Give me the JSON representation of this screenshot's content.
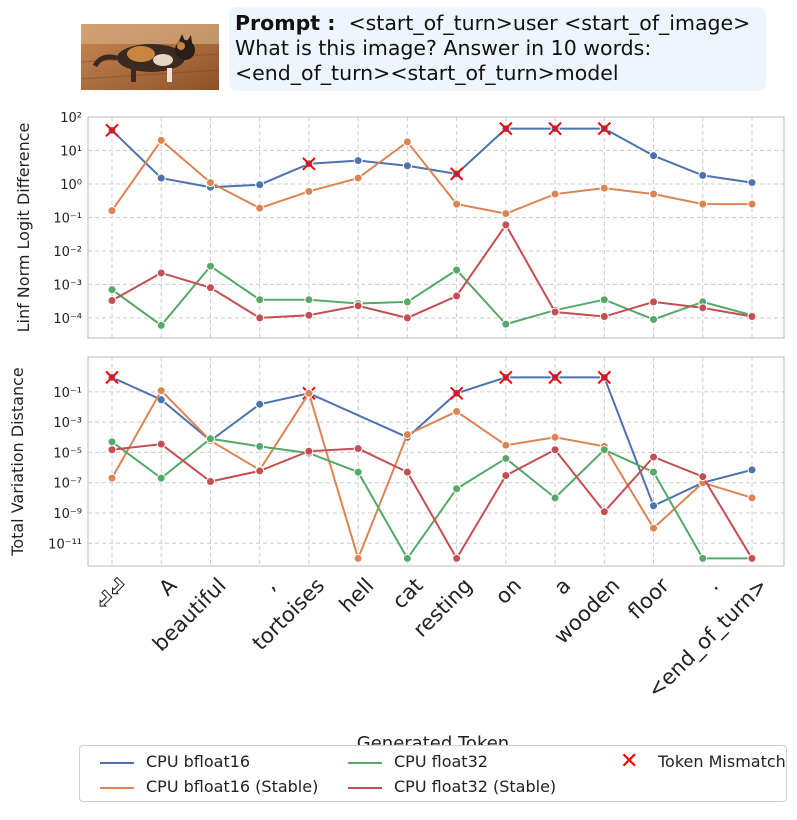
{
  "prompt": {
    "label": "Prompt :",
    "text": "<start_of_turn>user <start_of_image>\nWhat is this image? Answer in 10 words:\n<end_of_turn><start_of_turn>model"
  },
  "chart_data": [
    {
      "type": "line",
      "ylabel": "Linf Norm Logit Difference",
      "yscale": "log",
      "ylim_exp": [
        -4.6,
        2
      ],
      "yticks": [
        {
          "exp": 2,
          "label": "10²"
        },
        {
          "exp": 1,
          "label": "10¹"
        },
        {
          "exp": 0,
          "label": "10⁰"
        },
        {
          "exp": -1,
          "label": "10⁻¹"
        },
        {
          "exp": -2,
          "label": "10⁻²"
        },
        {
          "exp": -3,
          "label": "10⁻³"
        },
        {
          "exp": -4,
          "label": "10⁻⁴"
        }
      ],
      "grid": true,
      "series": [
        {
          "name": "CPU bfloat16",
          "color": "#4c72b0",
          "values": [
            40,
            1.5,
            0.8,
            0.95,
            4,
            5,
            3.5,
            2,
            45,
            45,
            45,
            7,
            1.8,
            1.1
          ],
          "mismatch": [
            0,
            4,
            7,
            8,
            9,
            10
          ]
        },
        {
          "name": "CPU bfloat16 (Stable)",
          "color": "#dd8452",
          "values": [
            0.16,
            20,
            1.1,
            0.19,
            0.6,
            1.5,
            18,
            0.25,
            0.13,
            0.5,
            0.75,
            0.5,
            0.25,
            0.25
          ],
          "mismatch": []
        },
        {
          "name": "CPU float32",
          "color": "#55a868",
          "values": [
            0.0007,
            6e-05,
            0.0035,
            0.00035,
            0.00035,
            0.00027,
            0.0003,
            0.0027,
            6.5e-05,
            0.00017,
            0.00035,
            9e-05,
            0.0003,
            0.00012
          ],
          "mismatch": []
        },
        {
          "name": "CPU float32 (Stable)",
          "color": "#c44e52",
          "values": [
            0.00033,
            0.0022,
            0.0008,
            0.0001,
            0.00012,
            0.00023,
            0.0001,
            0.00045,
            0.06,
            0.00015,
            0.00011,
            0.0003,
            0.0002,
            0.00011
          ],
          "mismatch": []
        }
      ]
    },
    {
      "type": "line",
      "ylabel": "Total Variation Distance",
      "yscale": "log",
      "ylim_exp": [
        -12.5,
        1.3
      ],
      "yticks": [
        {
          "exp": -1,
          "label": "10⁻¹"
        },
        {
          "exp": -3,
          "label": "10⁻³"
        },
        {
          "exp": -5,
          "label": "10⁻⁵"
        },
        {
          "exp": -7,
          "label": "10⁻⁷"
        },
        {
          "exp": -9,
          "label": "10⁻⁹"
        },
        {
          "exp": -11,
          "label": "10⁻¹¹"
        }
      ],
      "grid": true,
      "series": [
        {
          "name": "CPU bfloat16",
          "color": "#4c72b0",
          "values": [
            0.9,
            0.03,
            6e-05,
            0.015,
            0.08,
            "",
            0.0001,
            0.08,
            0.9,
            0.9,
            0.9,
            3e-09,
            1e-07,
            7e-07
          ],
          "mismatch": [
            0,
            4,
            7,
            8,
            9,
            10
          ]
        },
        {
          "name": "CPU bfloat16 (Stable)",
          "color": "#dd8452",
          "values": [
            2e-07,
            0.12,
            6e-05,
            7e-07,
            0.08,
            1e-12,
            0.00015,
            0.005,
            3e-05,
            0.0001,
            2.5e-05,
            1e-10,
            1e-07,
            1e-08
          ],
          "mismatch": []
        },
        {
          "name": "CPU float32",
          "color": "#55a868",
          "values": [
            5e-05,
            2e-07,
            8e-05,
            2.5e-05,
            9e-06,
            5e-07,
            1e-12,
            4e-08,
            4e-06,
            1e-08,
            1.5e-05,
            5e-07,
            1e-12,
            1e-12
          ],
          "mismatch": []
        },
        {
          "name": "CPU float32 (Stable)",
          "color": "#c44e52",
          "values": [
            1.5e-05,
            3.5e-05,
            1.2e-07,
            6e-07,
            1.2e-05,
            1.8e-05,
            5e-07,
            1e-12,
            3e-07,
            1.5e-05,
            1.2e-09,
            5e-06,
            2.5e-07,
            1e-12
          ],
          "mismatch": []
        }
      ]
    }
  ],
  "categories": [
    "⏎⏎",
    "A",
    "beautiful",
    ",",
    "tortoises",
    "hell",
    "cat",
    "resting",
    "on",
    "a",
    "wooden",
    "floor",
    ".",
    "<end_of_turn>"
  ],
  "xlabel": "Generated Token",
  "legend": {
    "items": [
      {
        "label": "CPU bfloat16",
        "color": "#4c72b0",
        "kind": "line"
      },
      {
        "label": "CPU bfloat16 (Stable)",
        "color": "#dd8452",
        "kind": "line"
      },
      {
        "label": "CPU float32",
        "color": "#55a868",
        "kind": "line"
      },
      {
        "label": "CPU float32 (Stable)",
        "color": "#c44e52",
        "kind": "line"
      },
      {
        "label": "Token Mismatch",
        "color": "#ff0000",
        "kind": "x"
      }
    ]
  }
}
